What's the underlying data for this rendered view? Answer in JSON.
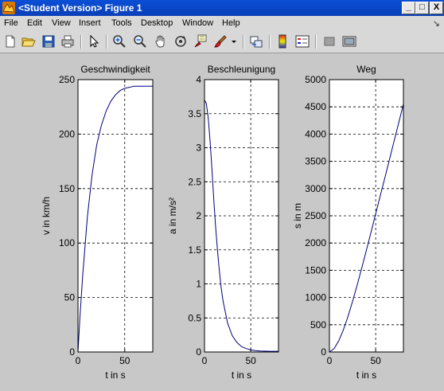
{
  "window": {
    "title": "<Student Version> Figure 1",
    "minimize_label": "_",
    "maximize_label": "□",
    "close_label": "X"
  },
  "menu": {
    "items": [
      "File",
      "Edit",
      "View",
      "Insert",
      "Tools",
      "Desktop",
      "Window",
      "Help"
    ],
    "dock_arrow": "↘"
  },
  "toolbar": {
    "icons": [
      "new-figure-icon",
      "open-file-icon",
      "save-icon",
      "print-icon",
      "edit-plot-arrow-icon",
      "zoom-in-icon",
      "zoom-out-icon",
      "pan-hand-icon",
      "rotate-3d-icon",
      "data-cursor-icon",
      "brush-icon",
      "brush-dropdown-icon",
      "link-plot-icon",
      "colorbar-icon",
      "legend-icon",
      "hide-plot-tools-icon",
      "show-plot-tools-icon"
    ]
  },
  "colors": {
    "line": "#00007f",
    "axes_bg": "#ffffff",
    "figure_bg": "#c8c8c8"
  },
  "chart_data": [
    {
      "type": "line",
      "title": "Geschwindigkeit",
      "xlabel": "t in s",
      "ylabel": "v in km/h",
      "xlim": [
        0,
        80
      ],
      "ylim": [
        0,
        250
      ],
      "xticks": [
        0,
        50
      ],
      "yticks": [
        0,
        50,
        100,
        150,
        200,
        250
      ],
      "grid": true,
      "x": [
        0,
        2,
        5,
        10,
        15,
        20,
        25,
        30,
        35,
        40,
        45,
        50,
        55,
        60,
        65,
        70,
        80
      ],
      "y": [
        0,
        30,
        70,
        124,
        162,
        190,
        208,
        221,
        230,
        236,
        240,
        242,
        243,
        244,
        244,
        244,
        244
      ]
    },
    {
      "type": "line",
      "title": "Beschleunigung",
      "xlabel": "t in s",
      "ylabel": "a in m/s²",
      "xlim": [
        0,
        80
      ],
      "ylim": [
        0,
        4
      ],
      "xticks": [
        0,
        50
      ],
      "yticks": [
        0,
        0.5,
        1,
        1.5,
        2,
        2.5,
        3,
        3.5,
        4
      ],
      "grid": true,
      "x": [
        0,
        2,
        4,
        6,
        8,
        10,
        12,
        14,
        16,
        18,
        20,
        25,
        30,
        35,
        40,
        45,
        50,
        55,
        60,
        70,
        80
      ],
      "y": [
        3.7,
        3.65,
        3.45,
        3.1,
        2.7,
        2.25,
        1.85,
        1.5,
        1.2,
        0.95,
        0.75,
        0.42,
        0.24,
        0.14,
        0.08,
        0.05,
        0.03,
        0.02,
        0.015,
        0.01,
        0.01
      ]
    },
    {
      "type": "line",
      "title": "Weg",
      "xlabel": "t in s",
      "ylabel": "s in m",
      "xlim": [
        0,
        80
      ],
      "ylim": [
        0,
        5000
      ],
      "xticks": [
        0,
        50
      ],
      "yticks": [
        0,
        500,
        1000,
        1500,
        2000,
        2500,
        3000,
        3500,
        4000,
        4500,
        5000
      ],
      "grid": true,
      "x": [
        0,
        5,
        10,
        15,
        20,
        25,
        30,
        35,
        40,
        45,
        50,
        55,
        60,
        65,
        70,
        75,
        80
      ],
      "y": [
        0,
        60,
        200,
        400,
        650,
        930,
        1230,
        1545,
        1870,
        2200,
        2535,
        2870,
        3205,
        3540,
        3880,
        4215,
        4550
      ]
    }
  ]
}
